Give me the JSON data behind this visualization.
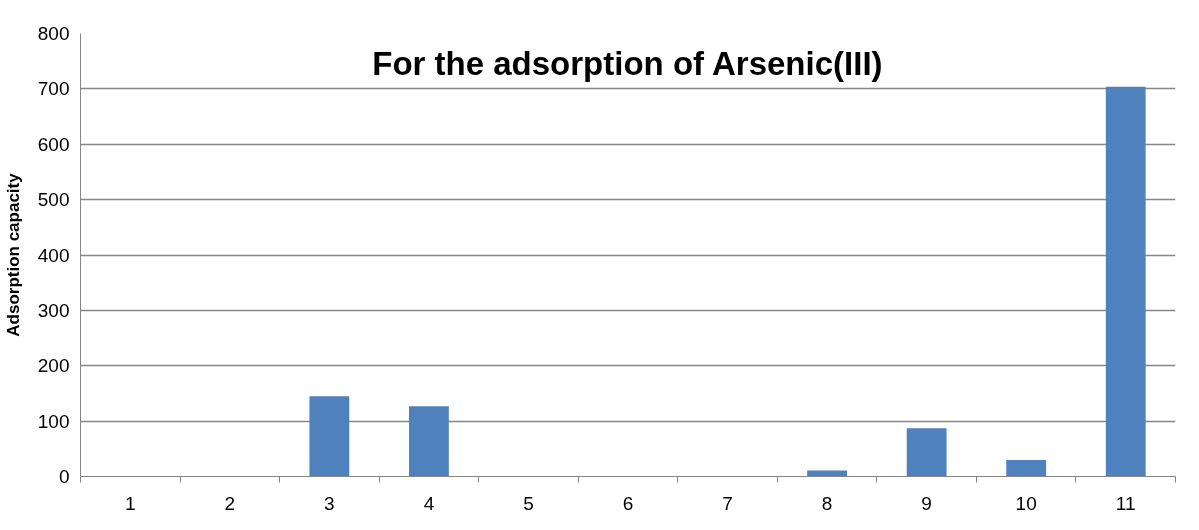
{
  "chart_data": {
    "type": "bar",
    "title": "For the adsorption of Arsenic(III)",
    "ylabel": "Adsorption capacity",
    "categories": [
      "1",
      "2",
      "3",
      "4",
      "5",
      "6",
      "7",
      "8",
      "9",
      "10",
      "11"
    ],
    "values": [
      0,
      0,
      145,
      127,
      0,
      0,
      0,
      11,
      87,
      30,
      704
    ],
    "color": "#4f81bd",
    "ylim": [
      0,
      800
    ],
    "yticks": [
      0,
      100,
      200,
      300,
      400,
      500,
      600,
      700,
      800
    ],
    "grid": "y"
  }
}
